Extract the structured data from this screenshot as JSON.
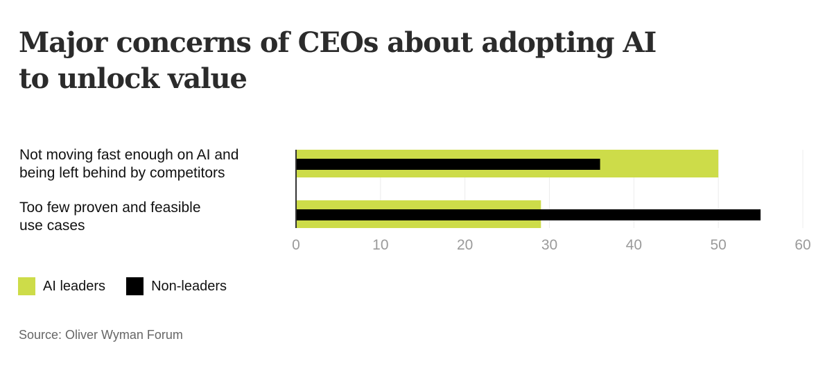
{
  "title_lines": [
    "Major concerns of CEOs about adopting AI",
    "to unlock value"
  ],
  "chart_data": {
    "type": "bar",
    "orientation": "horizontal",
    "title": "Major concerns of CEOs about adopting AI to unlock value",
    "categories": [
      [
        "Not moving fast enough on AI and",
        "being left behind by competitors"
      ],
      [
        "Too few proven and feasible",
        "use cases"
      ]
    ],
    "series": [
      {
        "name": "AI leaders",
        "color": "#cddc49",
        "values": [
          50,
          29
        ]
      },
      {
        "name": "Non-leaders",
        "color": "#000000",
        "values": [
          36,
          55
        ]
      }
    ],
    "xlim": [
      0,
      60
    ],
    "xticks": [
      "0",
      "10",
      "20",
      "30",
      "40",
      "50",
      "60"
    ],
    "grid": true,
    "legend_position": "bottom-left"
  },
  "legend": [
    {
      "label": "AI leaders",
      "color": "#cddc49"
    },
    {
      "label": "Non-leaders",
      "color": "#000000"
    }
  ],
  "source": "Source: Oliver Wyman Forum"
}
